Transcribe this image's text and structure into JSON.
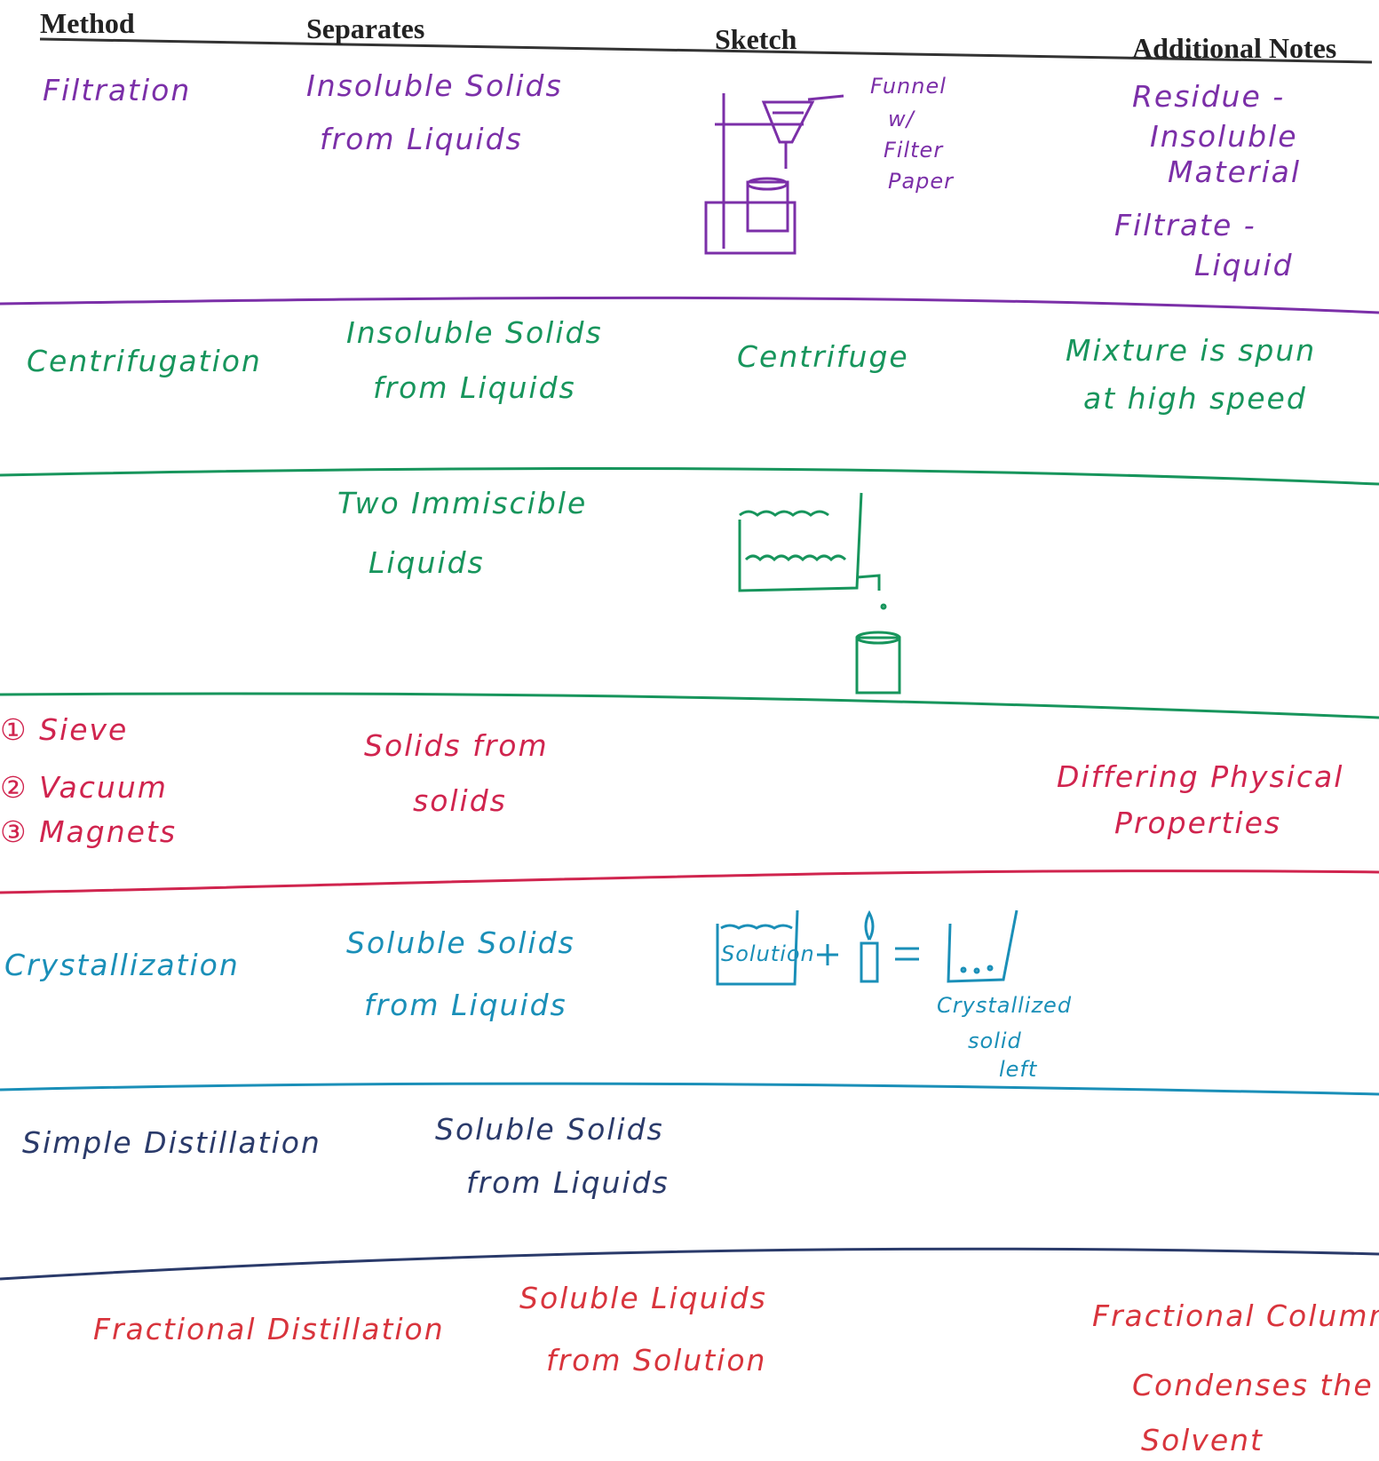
{
  "header": {
    "columns": [
      "Method",
      "Separates",
      "Sketch",
      "Additional Notes"
    ]
  },
  "rows": [
    {
      "color": "#7b2fa8",
      "method": [
        "Filtration"
      ],
      "separates": [
        "Insoluble Solids",
        "from Liquids"
      ],
      "sketch_labels": [
        "Funnel",
        "w/",
        "Filter",
        "Paper"
      ],
      "notes": [
        "Residue -",
        "Insoluble",
        "Material",
        "Filtrate -",
        "Liquid"
      ]
    },
    {
      "color": "#17955c",
      "method": [
        "Centrifugation"
      ],
      "separates": [
        "Insoluble Solids",
        "from Liquids"
      ],
      "sketch_labels": [
        "Centrifuge"
      ],
      "notes": [
        "Mixture is spun",
        "at high speed"
      ]
    },
    {
      "color": "#17955c",
      "separates": [
        "Two Immiscible",
        "Liquids"
      ]
    },
    {
      "color": "#d0244e",
      "method": [
        "① Sieve",
        "② Vacuum",
        "③ Magnets"
      ],
      "separates": [
        "Solids from",
        "solids"
      ],
      "notes": [
        "Differing Physical",
        "Properties"
      ]
    },
    {
      "color": "#1a8fb8",
      "method": [
        "Crystallization"
      ],
      "separates": [
        "Soluble Solids",
        "from Liquids"
      ],
      "sketch_labels": [
        "Solution",
        "Crystallized",
        "solid",
        "left"
      ]
    },
    {
      "color": "#2a3a6a",
      "method": [
        "Simple Distillation"
      ],
      "separates": [
        "Soluble Solids",
        "from Liquids"
      ]
    },
    {
      "color": "#d8343c",
      "method": [
        "Fractional Distillation"
      ],
      "separates": [
        "Soluble Liquids",
        "from Solution"
      ],
      "notes": [
        "Fractional Column",
        "Condenses the",
        "Solvent"
      ]
    }
  ]
}
